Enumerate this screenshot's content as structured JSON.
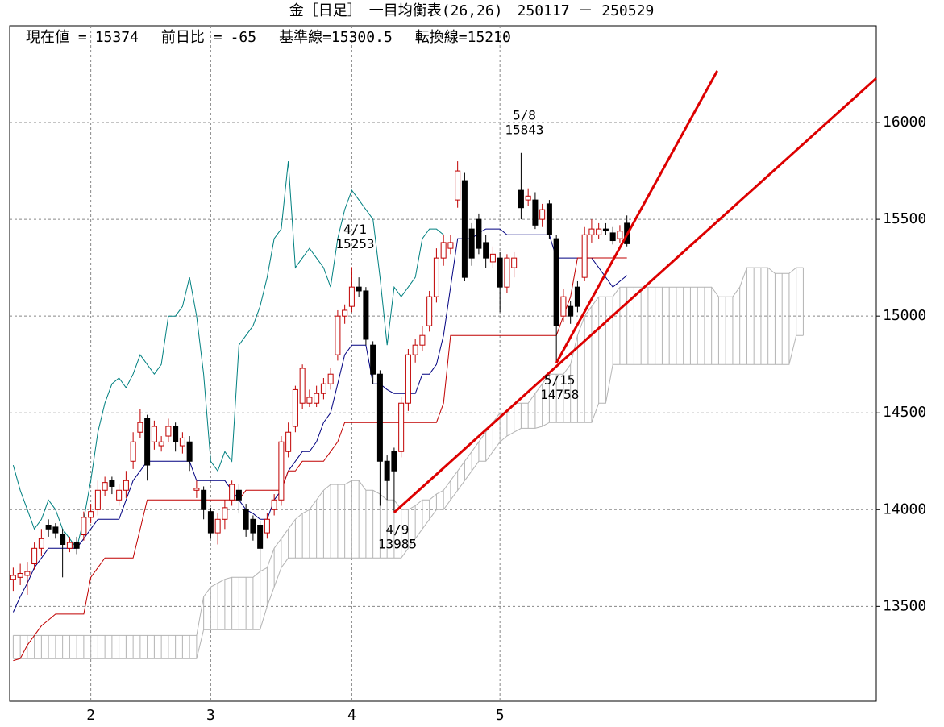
{
  "chart_data": {
    "type": "candlestick",
    "title": "金［日足］　一目均衡表(26,26)　250117 － 250529",
    "info": [
      {
        "label": "現在値 =",
        "value": 15374
      },
      {
        "label": "前日比 =",
        "value": -65
      },
      {
        "label": "基準線=",
        "value": 15300.5
      },
      {
        "label": "転換線=",
        "value": 15210
      }
    ],
    "xlim": [
      -0.5,
      122.35
    ],
    "ylim": [
      13010,
      16500
    ],
    "xticks": [
      {
        "value": 11,
        "label": "2"
      },
      {
        "value": 28,
        "label": "3"
      },
      {
        "value": 48,
        "label": "4"
      },
      {
        "value": 69,
        "label": "5"
      }
    ],
    "yticks": [
      13500,
      14000,
      14500,
      15000,
      15500,
      16000
    ],
    "grid": true,
    "up_color": "#c00000",
    "down_color": "#000000",
    "x": [
      0,
      1,
      2,
      3,
      4,
      5,
      6,
      7,
      8,
      9,
      10,
      11,
      12,
      13,
      14,
      15,
      16,
      17,
      18,
      19,
      20,
      21,
      22,
      23,
      24,
      25,
      26,
      27,
      28,
      29,
      30,
      31,
      32,
      33,
      34,
      35,
      36,
      37,
      38,
      39,
      40,
      41,
      42,
      43,
      44,
      45,
      46,
      47,
      48,
      49,
      50,
      51,
      52,
      53,
      54,
      55,
      56,
      57,
      58,
      59,
      60,
      61,
      62,
      63,
      64,
      65,
      66,
      67,
      68,
      69,
      70,
      71,
      72,
      73,
      74,
      75,
      76,
      77,
      78,
      79,
      80,
      81,
      82,
      83,
      84,
      85,
      86,
      87
    ],
    "open": [
      13640,
      13650,
      13660,
      13720,
      13800,
      13920,
      13910,
      13870,
      13800,
      13830,
      13870,
      13960,
      14000,
      14100,
      14150,
      14050,
      14100,
      14250,
      14400,
      14470,
      14350,
      14330,
      14380,
      14430,
      14330,
      14350,
      14100,
      14100,
      13990,
      13880,
      13950,
      14050,
      14100,
      14000,
      13950,
      13920,
      13880,
      14000,
      14050,
      14300,
      14430,
      14550,
      14550,
      14550,
      14600,
      14650,
      14800,
      15000,
      15050,
      15150,
      15130,
      14850,
      14700,
      14250,
      14300,
      14300,
      14550,
      14800,
      14850,
      14950,
      15100,
      15300,
      15350,
      15600,
      15700,
      15450,
      15500,
      15380,
      15280,
      15300,
      15150,
      15250,
      15650,
      15600,
      15600,
      15500,
      15580,
      15400,
      15000,
      15050,
      15150,
      15200,
      15420,
      15420,
      15450,
      15430,
      15400,
      15480
    ],
    "high": [
      13700,
      13720,
      13730,
      13830,
      13900,
      13950,
      13930,
      13900,
      13860,
      13860,
      13990,
      14030,
      14150,
      14170,
      14170,
      14130,
      14200,
      14400,
      14520,
      14490,
      14460,
      14380,
      14470,
      14450,
      14400,
      14380,
      14150,
      14120,
      14010,
      13980,
      14050,
      14150,
      14130,
      14030,
      13970,
      13940,
      13980,
      14080,
      14380,
      14450,
      14640,
      14750,
      14620,
      14640,
      14680,
      14730,
      15030,
      15060,
      15253,
      15200,
      15150,
      14870,
      14720,
      14280,
      14320,
      14580,
      14830,
      14880,
      14950,
      15130,
      15350,
      15420,
      15420,
      15800,
      15740,
      15480,
      15530,
      15420,
      15360,
      15330,
      15320,
      15330,
      15843,
      15660,
      15640,
      15580,
      15600,
      15420,
      15140,
      15080,
      15180,
      15460,
      15500,
      15480,
      15480,
      15460,
      15470,
      15520
    ],
    "low": [
      13580,
      13610,
      13560,
      13690,
      13760,
      13860,
      13850,
      13650,
      13780,
      13770,
      13840,
      13930,
      13970,
      14070,
      14080,
      14020,
      14060,
      14210,
      14370,
      14150,
      14310,
      14300,
      14350,
      14300,
      14290,
      14200,
      14060,
      13950,
      13850,
      13820,
      13900,
      14020,
      13980,
      13860,
      13840,
      13680,
      13850,
      13970,
      14020,
      14270,
      14400,
      14520,
      14530,
      14530,
      14570,
      14620,
      14770,
      14960,
      15020,
      15100,
      14850,
      14650,
      14020,
      14050,
      13985,
      14270,
      14510,
      14760,
      14820,
      14920,
      15070,
      15260,
      15320,
      15560,
      15180,
      15260,
      15320,
      15250,
      15250,
      15020,
      15120,
      15200,
      15500,
      15570,
      15450,
      15460,
      15400,
      14758,
      14970,
      14960,
      15020,
      15180,
      15380,
      15400,
      15420,
      15370,
      15380,
      15360
    ],
    "close": [
      13660,
      13670,
      13680,
      13800,
      13850,
      13900,
      13880,
      13820,
      13830,
      13800,
      13960,
      13990,
      14100,
      14140,
      14120,
      14100,
      14150,
      14350,
      14450,
      14230,
      14430,
      14350,
      14430,
      14350,
      14370,
      14250,
      14110,
      14000,
      13880,
      13950,
      14010,
      14130,
      14050,
      13900,
      13880,
      13800,
      13950,
      14050,
      14350,
      14400,
      14620,
      14730,
      14580,
      14600,
      14650,
      14700,
      15000,
      15030,
      15150,
      15130,
      14880,
      14700,
      14250,
      14150,
      14200,
      14550,
      14800,
      14850,
      14900,
      15100,
      15300,
      15380,
      15380,
      15750,
      15200,
      15300,
      15350,
      15300,
      15320,
      15150,
      15300,
      15300,
      15560,
      15620,
      15470,
      15550,
      15420,
      14950,
      15100,
      15000,
      15050,
      15420,
      15450,
      15450,
      15440,
      15390,
      15439,
      15374
    ],
    "lines": [
      {
        "color": "#000080",
        "values": [
          13470,
          13550,
          13620,
          13700,
          13750,
          13800,
          13800,
          13800,
          13800,
          13800,
          13850,
          13900,
          13950,
          13950,
          13950,
          13950,
          14050,
          14150,
          14200,
          14250,
          14250,
          14250,
          14250,
          14250,
          14250,
          14250,
          14150,
          14150,
          14150,
          14150,
          14150,
          14100,
          14050,
          14000,
          13980,
          13950,
          13950,
          14050,
          14100,
          14200,
          14250,
          14300,
          14300,
          14350,
          14450,
          14500,
          14650,
          14800,
          14850,
          14850,
          14850,
          14650,
          14650,
          14620,
          14600,
          14600,
          14600,
          14600,
          14700,
          14700,
          14750,
          14900,
          15150,
          15400,
          15400,
          15400,
          15430,
          15450,
          15450,
          15450,
          15420,
          15420,
          15420,
          15420,
          15420,
          15420,
          15420,
          15300,
          15300,
          15300,
          15300,
          15300,
          15300,
          15250,
          15200,
          15150,
          15180,
          15210
        ]
      },
      {
        "color": "#c00000",
        "values": [
          13220,
          13230,
          13300,
          13350,
          13400,
          13430,
          13460,
          13460,
          13460,
          13460,
          13460,
          13650,
          13700,
          13750,
          13750,
          13750,
          13750,
          13750,
          13900,
          14050,
          14050,
          14050,
          14050,
          14050,
          14050,
          14050,
          14050,
          14050,
          14050,
          14050,
          14050,
          14050,
          14050,
          14100,
          14100,
          14100,
          14100,
          14100,
          14100,
          14200,
          14200,
          14250,
          14250,
          14250,
          14250,
          14300,
          14350,
          14450,
          14450,
          14450,
          14450,
          14450,
          14450,
          14450,
          14450,
          14450,
          14450,
          14450,
          14450,
          14450,
          14450,
          14550,
          14900,
          14900,
          14900,
          14900,
          14900,
          14900,
          14900,
          14900,
          14900,
          14900,
          14900,
          14900,
          14900,
          14900,
          14900,
          14900,
          15000,
          15100,
          15300.5,
          15300.5,
          15300.5,
          15300.5,
          15300.5,
          15300.5,
          15300.5,
          15300.5
        ]
      },
      {
        "color": "#008080",
        "values": [
          14230,
          14100,
          14000,
          13900,
          13950,
          14050,
          14000,
          13900,
          13850,
          13800,
          13950,
          14150,
          14400,
          14550,
          14650,
          14680,
          14630,
          14700,
          14800,
          14750,
          14700,
          14750,
          15000,
          15000,
          15050,
          15200,
          15000,
          14700,
          14250,
          14200,
          14300,
          14250,
          14850,
          14900,
          14950,
          15050,
          15200,
          15400,
          15450,
          15800,
          15250,
          15300,
          15350,
          15300,
          15250,
          15150,
          15400,
          15550,
          15650,
          15600,
          15550,
          15500,
          15200,
          14850,
          15150,
          15100,
          15150,
          15200,
          15400,
          15450,
          15450,
          15420,
          null,
          null,
          null,
          null,
          null,
          null,
          null,
          null,
          null,
          null,
          null,
          null,
          null,
          null,
          null,
          null,
          null,
          null,
          null,
          null,
          null,
          null,
          null,
          null,
          null,
          null
        ]
      }
    ],
    "cloud": {
      "color": "#b4b4b4",
      "x": [
        0,
        1,
        2,
        3,
        4,
        5,
        6,
        7,
        8,
        9,
        10,
        11,
        12,
        13,
        14,
        15,
        16,
        17,
        18,
        19,
        20,
        21,
        22,
        23,
        24,
        25,
        26,
        27,
        28,
        29,
        30,
        31,
        32,
        33,
        34,
        35,
        36,
        37,
        38,
        39,
        40,
        41,
        42,
        43,
        44,
        45,
        46,
        47,
        48,
        49,
        50,
        51,
        52,
        53,
        54,
        55,
        56,
        57,
        58,
        59,
        60,
        61,
        62,
        63,
        64,
        65,
        66,
        67,
        68,
        69,
        70,
        71,
        72,
        73,
        74,
        75,
        76,
        77,
        78,
        79,
        80,
        81,
        82,
        83,
        84,
        85,
        86,
        87,
        88,
        89,
        90,
        91,
        92,
        93,
        94,
        95,
        96,
        97,
        98,
        99,
        100,
        101,
        102,
        103,
        104,
        105,
        106,
        107,
        108,
        109,
        110,
        111,
        112
      ],
      "span_a": [
        13350,
        13350,
        13350,
        13350,
        13350,
        13350,
        13350,
        13350,
        13350,
        13350,
        13350,
        13350,
        13350,
        13350,
        13350,
        13350,
        13350,
        13350,
        13350,
        13350,
        13350,
        13350,
        13350,
        13350,
        13350,
        13350,
        13350,
        13550,
        13600,
        13620,
        13640,
        13650,
        13650,
        13650,
        13650,
        13680,
        13700,
        13800,
        13850,
        13900,
        13950,
        13980,
        14000,
        14050,
        14100,
        14130,
        14130,
        14130,
        14150,
        14150,
        14100,
        14100,
        14080,
        14050,
        14050,
        14000,
        14000,
        14020,
        14050,
        14050,
        14080,
        14100,
        14150,
        14200,
        14250,
        14300,
        14350,
        14400,
        14450,
        14500,
        14500,
        14550,
        14550,
        14550,
        14600,
        14650,
        14700,
        14700,
        14700,
        14750,
        14900,
        15000,
        15050,
        15100,
        15100,
        15100,
        15150,
        15150,
        15150,
        15150,
        15150,
        15150,
        15150,
        15150,
        15150,
        15150,
        15150,
        15150,
        15150,
        15150,
        15100,
        15100,
        15100,
        15150,
        15250,
        15250,
        15250,
        15250,
        15220,
        15220,
        15220,
        15250,
        15250
      ],
      "span_b": [
        13230,
        13230,
        13230,
        13230,
        13230,
        13230,
        13230,
        13230,
        13230,
        13230,
        13230,
        13230,
        13230,
        13230,
        13230,
        13230,
        13230,
        13230,
        13230,
        13230,
        13230,
        13230,
        13230,
        13230,
        13230,
        13230,
        13230,
        13380,
        13380,
        13380,
        13380,
        13380,
        13380,
        13380,
        13380,
        13380,
        13500,
        13600,
        13700,
        13750,
        13750,
        13750,
        13750,
        13750,
        13750,
        13750,
        13750,
        13750,
        13750,
        13750,
        13750,
        13750,
        13750,
        13750,
        13750,
        13750,
        13800,
        13850,
        13900,
        13950,
        14000,
        14000,
        14050,
        14100,
        14150,
        14200,
        14250,
        14250,
        14300,
        14350,
        14380,
        14400,
        14420,
        14420,
        14420,
        14430,
        14450,
        14450,
        14450,
        14450,
        14450,
        14450,
        14450,
        14550,
        14550,
        14750,
        14750,
        14750,
        14750,
        14750,
        14750,
        14750,
        14750,
        14750,
        14750,
        14750,
        14750,
        14750,
        14750,
        14750,
        14750,
        14750,
        14750,
        14750,
        14750,
        14750,
        14750,
        14750,
        14750,
        14750,
        14750,
        14900,
        14900
      ]
    },
    "trend_lines": [
      {
        "color": "#dd0000",
        "x": [
          54,
          122.35
        ],
        "y": [
          13985,
          16229
        ]
      },
      {
        "color": "#dd0000",
        "x": [
          77,
          99.8
        ],
        "y": [
          14758,
          16267
        ]
      }
    ],
    "annotations": [
      {
        "date": "4/1",
        "value": 15253,
        "x": 48,
        "position": "above"
      },
      {
        "date": "5/8",
        "value": 15843,
        "x": 72,
        "position": "above"
      },
      {
        "date": "4/9",
        "value": 13985,
        "x": 54,
        "position": "below"
      },
      {
        "date": "5/15",
        "value": 14758,
        "x": 77,
        "position": "below"
      }
    ]
  }
}
